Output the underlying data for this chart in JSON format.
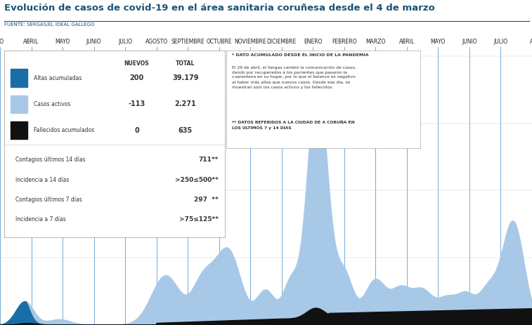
{
  "title": "Evolución de casos de covid-19 en el área sanitaria coruñesa desde el 4 de marzo",
  "subtitle": "FUENTE: SERGAS/EL IDEAL GALLEGO",
  "title_color": "#1a5276",
  "subtitle_color": "#1a5276",
  "months": [
    "ZO",
    "ABRIL",
    "MAYO",
    "JUNIO",
    "JULIO",
    "AGOSTO",
    "SEPTIEMBRE",
    "OCTUBRE",
    "NOVIEMBRE",
    "DICIEMBRE",
    "ENERO",
    "FEBRERO",
    "MARZO",
    "ABRIL",
    "MAYO",
    "JUNIO",
    "JULIO",
    "A"
  ],
  "month_positions": [
    0,
    1,
    2,
    3,
    4,
    5,
    6,
    7,
    8,
    9,
    10,
    11,
    12,
    13,
    14,
    15,
    16,
    17
  ],
  "bg_color": "#ffffff",
  "grid_color": "#5b9bd5",
  "area_light_color": "#a8c8e8",
  "area_dark_color": "#1a6ea8",
  "deaths_color": "#111111",
  "row1_label": "Altas acumuladas",
  "row1_nuevos": "200",
  "row1_total": "39.179",
  "row2_label": "Casos activos",
  "row2_nuevos": "-113",
  "row2_total": "2.271",
  "row3_label": "Fallecidos acumulados",
  "row3_nuevos": "0",
  "row3_total": "635",
  "row4_label": "Contagios últimos 14 días",
  "row4_value": "711**",
  "row5_label": "Incidencia a 14 días",
  "row5_value": ">250≤500**",
  "row6_label": "Contagios últimos 7 días",
  "row6_value": "297  **",
  "row7_label": "Incidencia a 7 días",
  "row7_value": ">75≤125**",
  "note1": "* DATO ACUMULADO DESDE EL INICIO DE LA PANDEMIA",
  "note2": "El 29 de abril, el Sergas cambió la comunicación de casos,\ndando por recuperados a los pacientes que pasaron la\ncuarentena en su hogar, por lo que el balance es negativo\nal haber más altas que nuevos casos. Desde ese día, se\nmuestran solo los casos activos y los fallecidos.",
  "note3": "** DATOS REFERIDOS A LA CIUDAD DE A CORUÑA EN\nLOS ÚLTIMOS 7 y 14 DÍAS"
}
